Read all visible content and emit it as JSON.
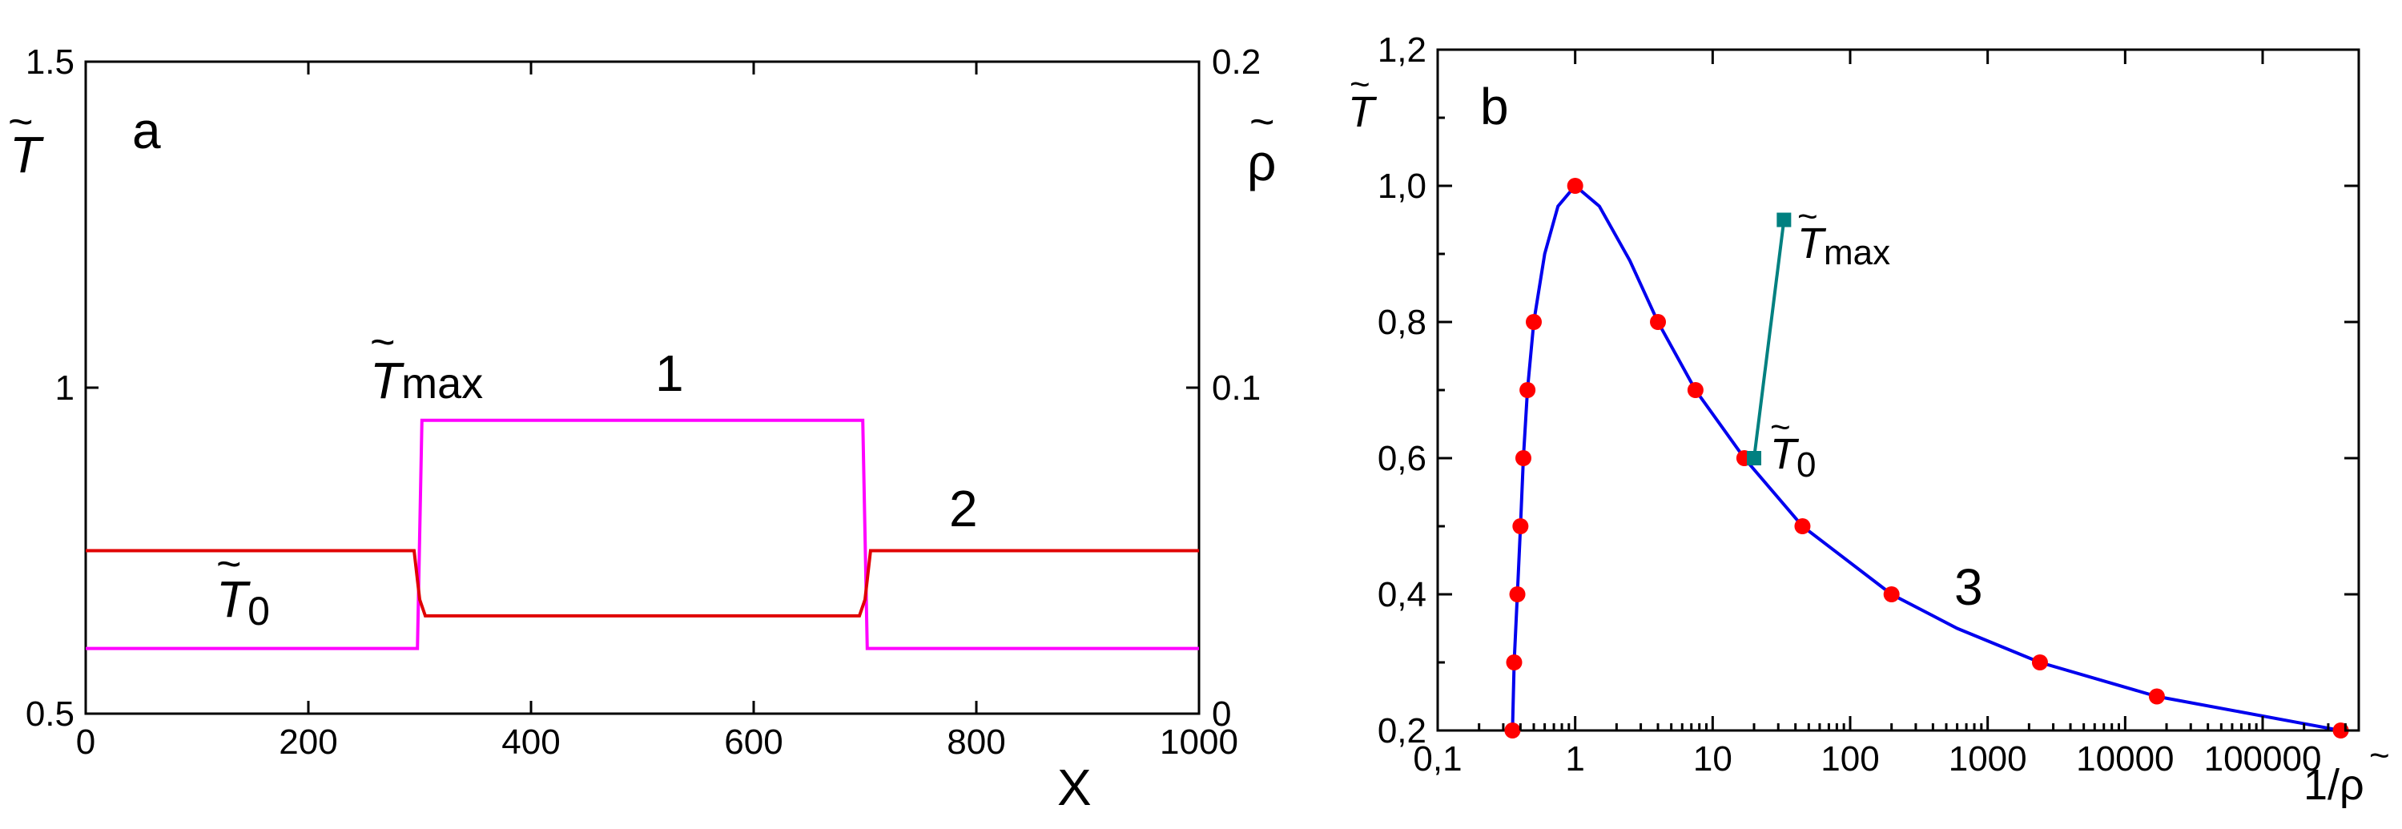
{
  "chart_data": [
    {
      "panel": "a",
      "type": "line",
      "xlabel": "X",
      "left_axis_symbol": "T",
      "right_axis_symbol": "ρ",
      "xlim": [
        0,
        1000
      ],
      "ylim_left": [
        0.5,
        1.5
      ],
      "ylim_right": [
        0,
        0.2
      ],
      "x_ticks": [
        "0",
        "200",
        "400",
        "600",
        "800",
        "1000"
      ],
      "left_ticks": [
        "0.5",
        "1",
        "1.5"
      ],
      "right_ticks": [
        "0",
        "0.1",
        "0.2"
      ],
      "annotations": {
        "tmax_main": "T",
        "tmax_sub": "max",
        "t0_main": "T",
        "t0_sub": "0",
        "curve1": "1",
        "curve2": "2"
      },
      "series": [
        {
          "name": "1",
          "axis": "left",
          "color": "#ff00ff",
          "x": [
            0,
            298,
            302,
            698,
            702,
            1000
          ],
          "y": [
            0.6,
            0.6,
            0.95,
            0.95,
            0.6,
            0.6
          ]
        },
        {
          "name": "2",
          "axis": "right",
          "color": "#e00000",
          "x": [
            0,
            295,
            300,
            305,
            695,
            700,
            705,
            1000
          ],
          "y": [
            0.05,
            0.05,
            0.035,
            0.03,
            0.03,
            0.035,
            0.05,
            0.05
          ]
        }
      ]
    },
    {
      "panel": "b",
      "type": "scatter",
      "xscale": "log",
      "xlabel": "1/ρ",
      "ylabel": "T",
      "xlim": [
        0.1,
        500000
      ],
      "ylim": [
        0.2,
        1.2
      ],
      "x_ticks": [
        "0,1",
        "1",
        "10",
        "100",
        "1000",
        "10000",
        "100000"
      ],
      "y_ticks": [
        "0,2",
        "0,4",
        "0,6",
        "0,8",
        "1,0",
        "1,2"
      ],
      "annotations": {
        "curve3": "3",
        "tmax_main": "T",
        "tmax_sub": "max",
        "t0_main": "T",
        "t0_sub": "0"
      },
      "series": [
        {
          "name": "3",
          "color": "#0000ee",
          "marker_color": "#ff0000",
          "points": [
            {
              "x": 0.35,
              "y": 0.2
            },
            {
              "x": 0.36,
              "y": 0.3
            },
            {
              "x": 0.38,
              "y": 0.4
            },
            {
              "x": 0.4,
              "y": 0.5
            },
            {
              "x": 0.42,
              "y": 0.6
            },
            {
              "x": 0.45,
              "y": 0.7
            },
            {
              "x": 0.5,
              "y": 0.8
            },
            {
              "x": 1.0,
              "y": 1.0
            },
            {
              "x": 4.0,
              "y": 0.8
            },
            {
              "x": 7.5,
              "y": 0.7
            },
            {
              "x": 17,
              "y": 0.6
            },
            {
              "x": 45,
              "y": 0.5
            },
            {
              "x": 200,
              "y": 0.4
            },
            {
              "x": 2400,
              "y": 0.3
            },
            {
              "x": 17000,
              "y": 0.25
            },
            {
              "x": 370000,
              "y": 0.2
            }
          ],
          "curve": [
            {
              "x": 0.35,
              "y": 0.2
            },
            {
              "x": 0.36,
              "y": 0.3
            },
            {
              "x": 0.38,
              "y": 0.4
            },
            {
              "x": 0.4,
              "y": 0.5
            },
            {
              "x": 0.42,
              "y": 0.6
            },
            {
              "x": 0.45,
              "y": 0.7
            },
            {
              "x": 0.5,
              "y": 0.8
            },
            {
              "x": 0.6,
              "y": 0.9
            },
            {
              "x": 0.75,
              "y": 0.97
            },
            {
              "x": 1.0,
              "y": 1.0
            },
            {
              "x": 1.5,
              "y": 0.97
            },
            {
              "x": 2.5,
              "y": 0.89
            },
            {
              "x": 4.0,
              "y": 0.8
            },
            {
              "x": 7.5,
              "y": 0.7
            },
            {
              "x": 17,
              "y": 0.6
            },
            {
              "x": 45,
              "y": 0.5
            },
            {
              "x": 200,
              "y": 0.4
            },
            {
              "x": 600,
              "y": 0.35
            },
            {
              "x": 2400,
              "y": 0.3
            },
            {
              "x": 17000,
              "y": 0.25
            },
            {
              "x": 370000,
              "y": 0.2
            }
          ]
        },
        {
          "name": "T0-Tmax",
          "color": "#008080",
          "points": [
            {
              "x": 20,
              "y": 0.6
            },
            {
              "x": 33,
              "y": 0.95
            }
          ]
        }
      ]
    }
  ]
}
